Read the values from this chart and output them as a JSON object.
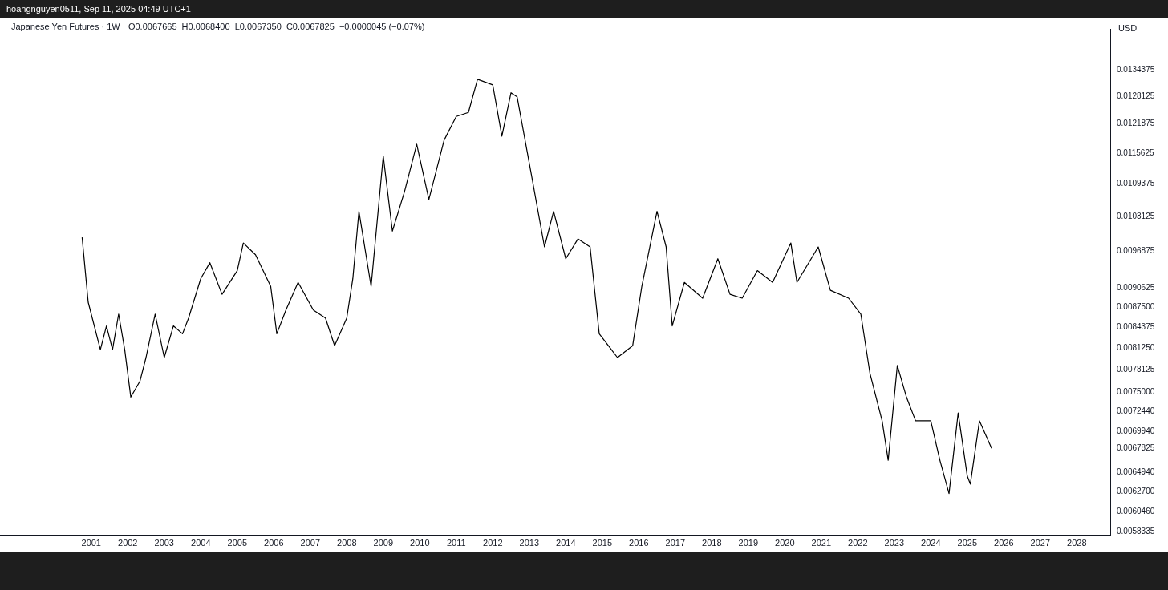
{
  "chart_data": {
    "type": "line",
    "title": "Japanese Yen Futures · 1W",
    "annotations": [
      "O0.0067665  H0.0068400  L0.0067350  C0.0067825  −0.0000045 (−0.07%)",
      "USD",
      "hoangnguyen0511, Sep 11, 2025 04:49 UTC+1"
    ],
    "series": [
      {
        "color": "#000000",
        "x": [
          "2000-10",
          "2000-12",
          "2001-04",
          "2001-06",
          "2001-08",
          "2001-10",
          "2001-12",
          "2002-02",
          "2002-05",
          "2002-07",
          "2002-10",
          "2003-01",
          "2003-04",
          "2003-07",
          "2003-09",
          "2004-01",
          "2004-04",
          "2004-08",
          "2005-01",
          "2005-03",
          "2005-07",
          "2005-12",
          "2006-02",
          "2006-05",
          "2006-09",
          "2007-02",
          "2007-06",
          "2007-09",
          "2008-01",
          "2008-03",
          "2008-05",
          "2008-09",
          "2009-01",
          "2009-04",
          "2009-08",
          "2009-12",
          "2010-04",
          "2010-09",
          "2011-01",
          "2011-05",
          "2011-08",
          "2012-01",
          "2012-04",
          "2012-07",
          "2012-09",
          "2013-02",
          "2013-06",
          "2013-09",
          "2014-01",
          "2014-05",
          "2014-09",
          "2014-12",
          "2015-06",
          "2015-11",
          "2016-02",
          "2016-07",
          "2016-10",
          "2016-12",
          "2017-04",
          "2017-10",
          "2018-03",
          "2018-07",
          "2018-11",
          "2019-04",
          "2019-09",
          "2020-03",
          "2020-05",
          "2020-12",
          "2021-04",
          "2021-10",
          "2022-02",
          "2022-05",
          "2022-09",
          "2022-11",
          "2023-02",
          "2023-05",
          "2023-08",
          "2024-01",
          "2024-04",
          "2024-07",
          "2024-10",
          "2025-01",
          "2025-02",
          "2025-05",
          "2025-09"
        ],
        "values": [
          0.009926,
          0.008829,
          0.008104,
          0.008459,
          0.008104,
          0.008642,
          0.008104,
          0.007438,
          0.007654,
          0.007989,
          0.008642,
          0.007989,
          0.008459,
          0.008339,
          0.00858,
          0.009215,
          0.009483,
          0.008956,
          0.009348,
          0.009827,
          0.00962,
          0.009085,
          0.008339,
          0.008704,
          0.009151,
          0.008704,
          0.00858,
          0.008162,
          0.00858,
          0.009215,
          0.010406,
          0.009085,
          0.0115,
          0.01004,
          0.010784,
          0.011748,
          0.01063,
          0.011833,
          0.012352,
          0.012441,
          0.013209,
          0.013078,
          0.011918,
          0.012892,
          0.0128,
          0.011017,
          0.009757,
          0.010406,
          0.009551,
          0.009898,
          0.009757,
          0.008339,
          0.007989,
          0.008162,
          0.009085,
          0.010406,
          0.009757,
          0.008459,
          0.009151,
          0.008893,
          0.009551,
          0.008956,
          0.008893,
          0.009348,
          0.009151,
          0.009827,
          0.009151,
          0.009757,
          0.009021,
          0.008893,
          0.008642,
          0.007764,
          0.007126,
          0.006636,
          0.007876,
          0.007438,
          0.007126,
          0.007126,
          0.006636,
          0.006248,
          0.007228,
          0.006449,
          0.006356,
          0.007126,
          0.00678
        ]
      }
    ],
    "xlim": [
      "1998-07",
      "2028-12"
    ],
    "xticks": [
      "2001",
      "2002",
      "2003",
      "2004",
      "2005",
      "2006",
      "2007",
      "2008",
      "2009",
      "2010",
      "2011",
      "2012",
      "2013",
      "2014",
      "2015",
      "2016",
      "2017",
      "2018",
      "2019",
      "2020",
      "2021",
      "2022",
      "2023",
      "2024",
      "2025",
      "2026",
      "2027",
      "2028"
    ],
    "ylim": [
      0.005785,
      0.01447
    ],
    "yticks": [
      {
        "value": 0.0134375,
        "label": "0.0134375"
      },
      {
        "value": 0.0128125,
        "label": "0.0128125"
      },
      {
        "value": 0.0121875,
        "label": "0.0121875"
      },
      {
        "value": 0.0115625,
        "label": "0.0115625"
      },
      {
        "value": 0.0109375,
        "label": "0.0109375"
      },
      {
        "value": 0.0103125,
        "label": "0.0103125"
      },
      {
        "value": 0.0096875,
        "label": "0.0096875"
      },
      {
        "value": 0.0090625,
        "label": "0.0090625"
      },
      {
        "value": 0.00875,
        "label": "0.0087500"
      },
      {
        "value": 0.0084375,
        "label": "0.0084375"
      },
      {
        "value": 0.008125,
        "label": "0.0081250"
      },
      {
        "value": 0.0078125,
        "label": "0.0078125"
      },
      {
        "value": 0.0075,
        "label": "0.0075000"
      },
      {
        "value": 0.007244,
        "label": "0.0072440"
      },
      {
        "value": 0.006994,
        "label": "0.0069940"
      },
      {
        "value": 0.0067825,
        "label": "0.0067825"
      },
      {
        "value": 0.006494,
        "label": "0.0064940"
      },
      {
        "value": 0.00627,
        "label": "0.0062700"
      },
      {
        "value": 0.006046,
        "label": "0.0060460"
      },
      {
        "value": 0.0058335,
        "label": "0.0058335"
      }
    ],
    "log": "y",
    "grid": false,
    "legend": false,
    "marker": "none",
    "line_style": "solid"
  }
}
